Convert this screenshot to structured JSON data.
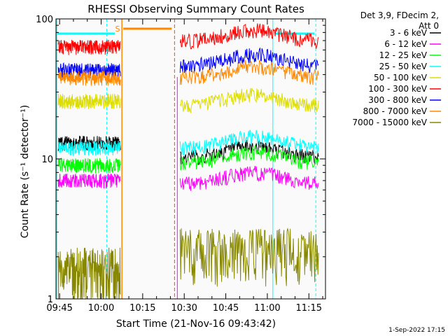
{
  "chart_data": {
    "type": "line",
    "title": "RHESSI Observing Summary Count Rates",
    "xlabel": "Start Time (21-Nov-16 09:43:42)",
    "ylabel": "Count Rate (s⁻¹ detector⁻¹)",
    "yscale": "log",
    "ylim": [
      1,
      100
    ],
    "yticks": [
      {
        "value": 1,
        "label": "1"
      },
      {
        "value": 10,
        "label": "10"
      },
      {
        "value": 100,
        "label": "100"
      }
    ],
    "xlim": [
      "09:43:42",
      "11:21:00"
    ],
    "xticks": [
      "09:45",
      "10:00",
      "10:15",
      "10:30",
      "10:45",
      "11:00",
      "11:15"
    ],
    "legend": {
      "position": "top-right",
      "header": [
        "Det 3,9, FDecim 2,",
        "Att 0"
      ]
    },
    "series": [
      {
        "name": "3 - 6 keV",
        "color": "#000000",
        "levels": [
          13,
          11.5
        ]
      },
      {
        "name": "6 - 12 keV",
        "color": "#ff00ff",
        "levels": [
          7,
          7.5
        ]
      },
      {
        "name": "12 - 25 keV",
        "color": "#00ff00",
        "levels": [
          9,
          10.5
        ]
      },
      {
        "name": "25 - 50 keV",
        "color": "#00ffff",
        "levels": [
          12,
          13.5
        ]
      },
      {
        "name": "50 - 100 keV",
        "color": "#dddd00",
        "levels": [
          26,
          27
        ]
      },
      {
        "name": "100 - 300 keV",
        "color": "#ff0000",
        "levels": [
          63,
          78
        ]
      },
      {
        "name": "300 - 800 keV",
        "color": "#0000ff",
        "levels": [
          43,
          52
        ]
      },
      {
        "name": "800 - 7000 keV",
        "color": "#ff8800",
        "levels": [
          38,
          43
        ]
      },
      {
        "name": "7000 - 15000 keV",
        "color": "#888800",
        "levels": [
          1.6,
          2.2
        ]
      }
    ],
    "saa_marker": "S",
    "footer_date": "1-Sep-2022 17:15"
  }
}
